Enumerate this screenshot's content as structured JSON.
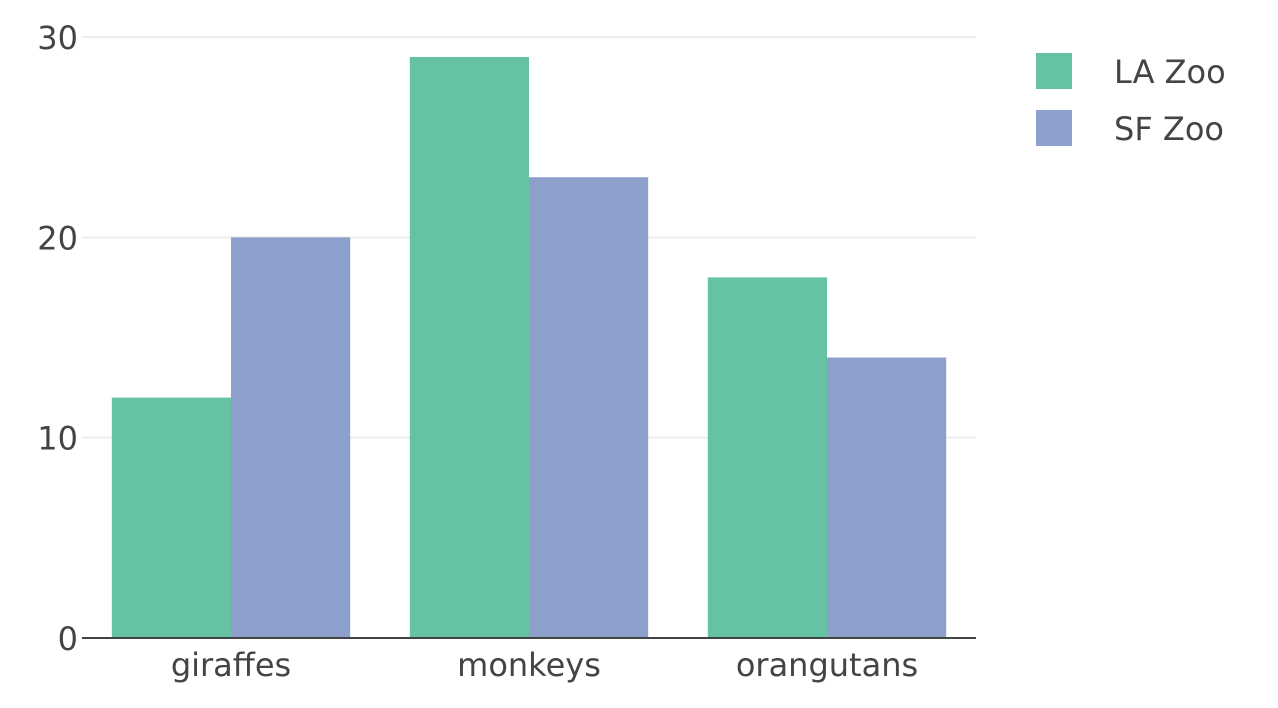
{
  "chart_data": {
    "type": "bar",
    "barmode": "group",
    "categories": [
      "giraffes",
      "monkeys",
      "orangutans"
    ],
    "series": [
      {
        "name": "LA Zoo",
        "values": [
          12,
          29,
          18
        ],
        "color": "#66c2a5"
      },
      {
        "name": "SF Zoo",
        "values": [
          20,
          23,
          14
        ],
        "color": "#8da0cb"
      }
    ],
    "yticks": [
      0,
      10,
      20,
      30
    ],
    "ylim": [
      0,
      30
    ],
    "grid": true,
    "legend_position": "top-right",
    "gridline_color": "#eeeeee",
    "axis_color": "#444444",
    "text_color": "#444444"
  }
}
